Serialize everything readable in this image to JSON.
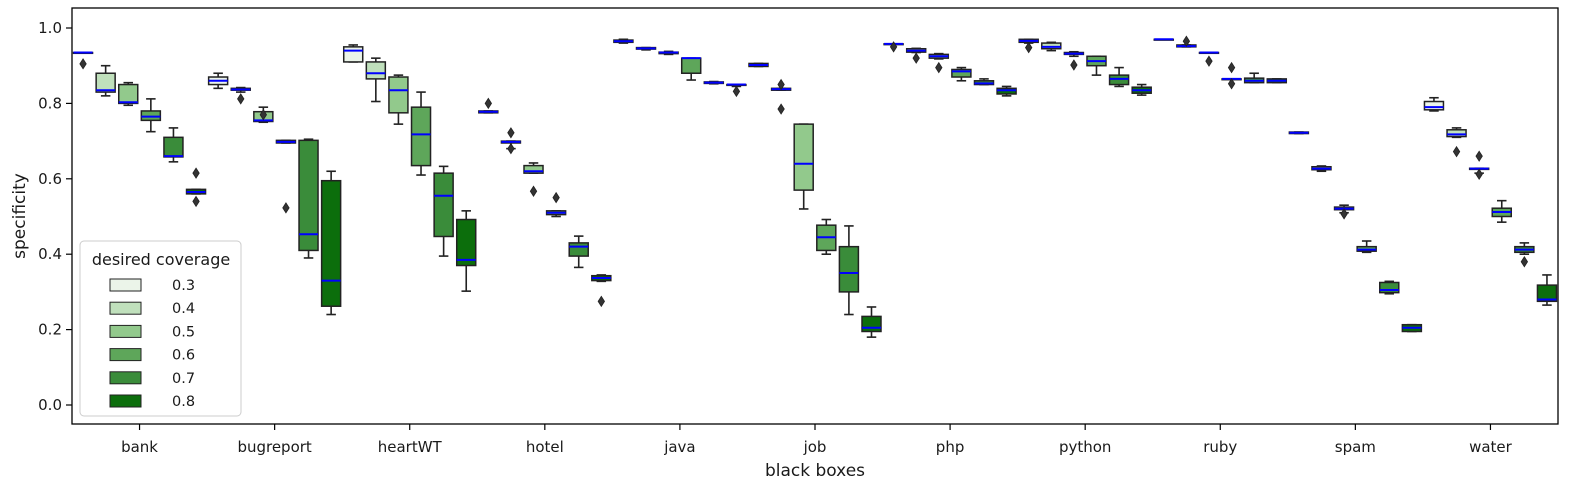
{
  "chart_data": {
    "type": "box",
    "xlabel": "black boxes",
    "ylabel": "specificity",
    "ylim": [
      -0.05,
      1.05
    ],
    "yticks": [
      0.0,
      0.2,
      0.4,
      0.6,
      0.8,
      1.0
    ],
    "ytick_labels": [
      "0.0",
      "0.2",
      "0.4",
      "0.6",
      "0.8",
      "1.0"
    ],
    "grid": false,
    "median_color": "#0000ff",
    "categories": [
      "bank",
      "bugreport",
      "heartWT",
      "hotel",
      "java",
      "job",
      "php",
      "python",
      "ruby",
      "spam",
      "water"
    ],
    "legend": {
      "title": "desired coverage",
      "position": "lower-left",
      "entries": [
        "0.3",
        "0.4",
        "0.5",
        "0.6",
        "0.7",
        "0.8"
      ]
    },
    "series": [
      {
        "name": "0.3",
        "color": "#ebf4e9",
        "stats": [
          [
            0.935,
            0.935,
            0.935,
            0.935,
            0.935,
            [
              0.905
            ]
          ],
          [
            0.84,
            0.85,
            0.86,
            0.87,
            0.88,
            []
          ],
          [
            0.91,
            0.91,
            0.94,
            0.95,
            0.955,
            []
          ],
          [
            0.775,
            0.775,
            0.778,
            0.78,
            0.78,
            [
              0.8
            ]
          ],
          [
            0.96,
            0.962,
            0.965,
            0.968,
            0.97,
            []
          ],
          [
            0.898,
            0.898,
            0.902,
            0.906,
            0.906,
            []
          ],
          [
            0.958,
            0.958,
            0.958,
            0.958,
            0.958,
            [
              0.95
            ]
          ],
          [
            0.96,
            0.962,
            0.966,
            0.97,
            0.97,
            [
              0.948
            ]
          ],
          [
            0.97,
            0.97,
            0.97,
            0.97,
            0.97,
            []
          ],
          [
            0.72,
            0.72,
            0.722,
            0.724,
            0.724,
            []
          ],
          [
            0.78,
            0.783,
            0.79,
            0.805,
            0.815,
            []
          ]
        ]
      },
      {
        "name": "0.4",
        "color": "#c0e0bc",
        "stats": [
          [
            0.82,
            0.83,
            0.835,
            0.88,
            0.9,
            []
          ],
          [
            0.83,
            0.835,
            0.837,
            0.84,
            0.842,
            [
              0.812
            ]
          ],
          [
            0.805,
            0.865,
            0.88,
            0.91,
            0.92,
            []
          ],
          [
            0.68,
            0.695,
            0.698,
            0.7,
            0.7,
            [
              0.722,
              0.68
            ]
          ],
          [
            0.942,
            0.944,
            0.946,
            0.948,
            0.948,
            []
          ],
          [
            0.835,
            0.835,
            0.838,
            0.84,
            0.84,
            [
              0.85,
              0.785
            ]
          ],
          [
            0.935,
            0.936,
            0.94,
            0.945,
            0.946,
            [
              0.92
            ]
          ],
          [
            0.94,
            0.945,
            0.95,
            0.96,
            0.962,
            []
          ],
          [
            0.95,
            0.95,
            0.952,
            0.955,
            0.955,
            [
              0.965
            ]
          ],
          [
            0.62,
            0.624,
            0.627,
            0.632,
            0.634,
            []
          ],
          [
            0.71,
            0.712,
            0.718,
            0.73,
            0.735,
            [
              0.672
            ]
          ]
        ]
      },
      {
        "name": "0.5",
        "color": "#92c98c",
        "stats": [
          [
            0.795,
            0.8,
            0.803,
            0.85,
            0.855,
            []
          ],
          [
            0.75,
            0.752,
            0.755,
            0.778,
            0.79,
            [
              0.77
            ]
          ],
          [
            0.745,
            0.775,
            0.835,
            0.87,
            0.875,
            []
          ],
          [
            0.615,
            0.615,
            0.62,
            0.635,
            0.642,
            [
              0.567
            ]
          ],
          [
            0.93,
            0.932,
            0.935,
            0.936,
            0.938,
            []
          ],
          [
            0.52,
            0.57,
            0.64,
            0.745,
            0.745,
            []
          ],
          [
            0.918,
            0.92,
            0.925,
            0.93,
            0.932,
            [
              0.895
            ]
          ],
          [
            0.925,
            0.93,
            0.932,
            0.935,
            0.937,
            [
              0.902
            ]
          ],
          [
            0.935,
            0.935,
            0.935,
            0.935,
            0.935,
            [
              0.912
            ]
          ],
          [
            0.51,
            0.518,
            0.521,
            0.525,
            0.53,
            [
              0.507
            ]
          ],
          [
            0.615,
            0.625,
            0.627,
            0.628,
            0.628,
            [
              0.66,
              0.612
            ]
          ]
        ]
      },
      {
        "name": "0.6",
        "color": "#5ea65a",
        "stats": [
          [
            0.725,
            0.755,
            0.765,
            0.78,
            0.812,
            []
          ],
          [
            0.695,
            0.695,
            0.698,
            0.702,
            0.702,
            [
              0.523
            ]
          ],
          [
            0.61,
            0.635,
            0.718,
            0.79,
            0.83,
            []
          ],
          [
            0.5,
            0.505,
            0.51,
            0.515,
            0.515,
            [
              0.55
            ]
          ],
          [
            0.862,
            0.88,
            0.92,
            0.92,
            0.92,
            []
          ],
          [
            0.4,
            0.41,
            0.445,
            0.477,
            0.492,
            []
          ],
          [
            0.86,
            0.87,
            0.885,
            0.89,
            0.895,
            []
          ],
          [
            0.875,
            0.9,
            0.912,
            0.925,
            0.925,
            []
          ],
          [
            0.865,
            0.865,
            0.865,
            0.865,
            0.865,
            [
              0.895,
              0.852
            ]
          ],
          [
            0.405,
            0.408,
            0.412,
            0.42,
            0.435,
            []
          ],
          [
            0.485,
            0.5,
            0.512,
            0.522,
            0.542,
            []
          ]
        ]
      },
      {
        "name": "0.7",
        "color": "#3a8c3a",
        "stats": [
          [
            0.645,
            0.658,
            0.66,
            0.71,
            0.735,
            []
          ],
          [
            0.39,
            0.41,
            0.453,
            0.702,
            0.705,
            []
          ],
          [
            0.395,
            0.447,
            0.555,
            0.615,
            0.633,
            []
          ],
          [
            0.365,
            0.395,
            0.42,
            0.43,
            0.448,
            []
          ],
          [
            0.852,
            0.853,
            0.855,
            0.857,
            0.858,
            []
          ],
          [
            0.24,
            0.3,
            0.35,
            0.42,
            0.475,
            []
          ],
          [
            0.85,
            0.85,
            0.853,
            0.86,
            0.865,
            []
          ],
          [
            0.845,
            0.85,
            0.865,
            0.875,
            0.895,
            []
          ],
          [
            0.855,
            0.855,
            0.86,
            0.867,
            0.88,
            []
          ],
          [
            0.295,
            0.298,
            0.305,
            0.325,
            0.328,
            []
          ],
          [
            0.4,
            0.405,
            0.412,
            0.42,
            0.43,
            [
              0.38
            ]
          ]
        ]
      },
      {
        "name": "0.8",
        "color": "#0c6e0c",
        "stats": [
          [
            0.56,
            0.56,
            0.565,
            0.572,
            0.572,
            [
              0.615,
              0.54
            ]
          ],
          [
            0.24,
            0.262,
            0.33,
            0.595,
            0.62,
            []
          ],
          [
            0.302,
            0.37,
            0.385,
            0.492,
            0.515,
            []
          ],
          [
            0.328,
            0.33,
            0.337,
            0.343,
            0.345,
            [
              0.275
            ]
          ],
          [
            0.845,
            0.848,
            0.85,
            0.85,
            0.85,
            [
              0.832
            ]
          ],
          [
            0.18,
            0.195,
            0.205,
            0.235,
            0.26,
            []
          ],
          [
            0.82,
            0.825,
            0.835,
            0.84,
            0.845,
            []
          ],
          [
            0.822,
            0.827,
            0.835,
            0.843,
            0.85,
            []
          ],
          [
            0.855,
            0.855,
            0.86,
            0.865,
            0.865,
            []
          ],
          [
            0.195,
            0.195,
            0.205,
            0.213,
            0.213,
            []
          ],
          [
            0.265,
            0.275,
            0.28,
            0.318,
            0.345,
            []
          ]
        ]
      }
    ]
  }
}
